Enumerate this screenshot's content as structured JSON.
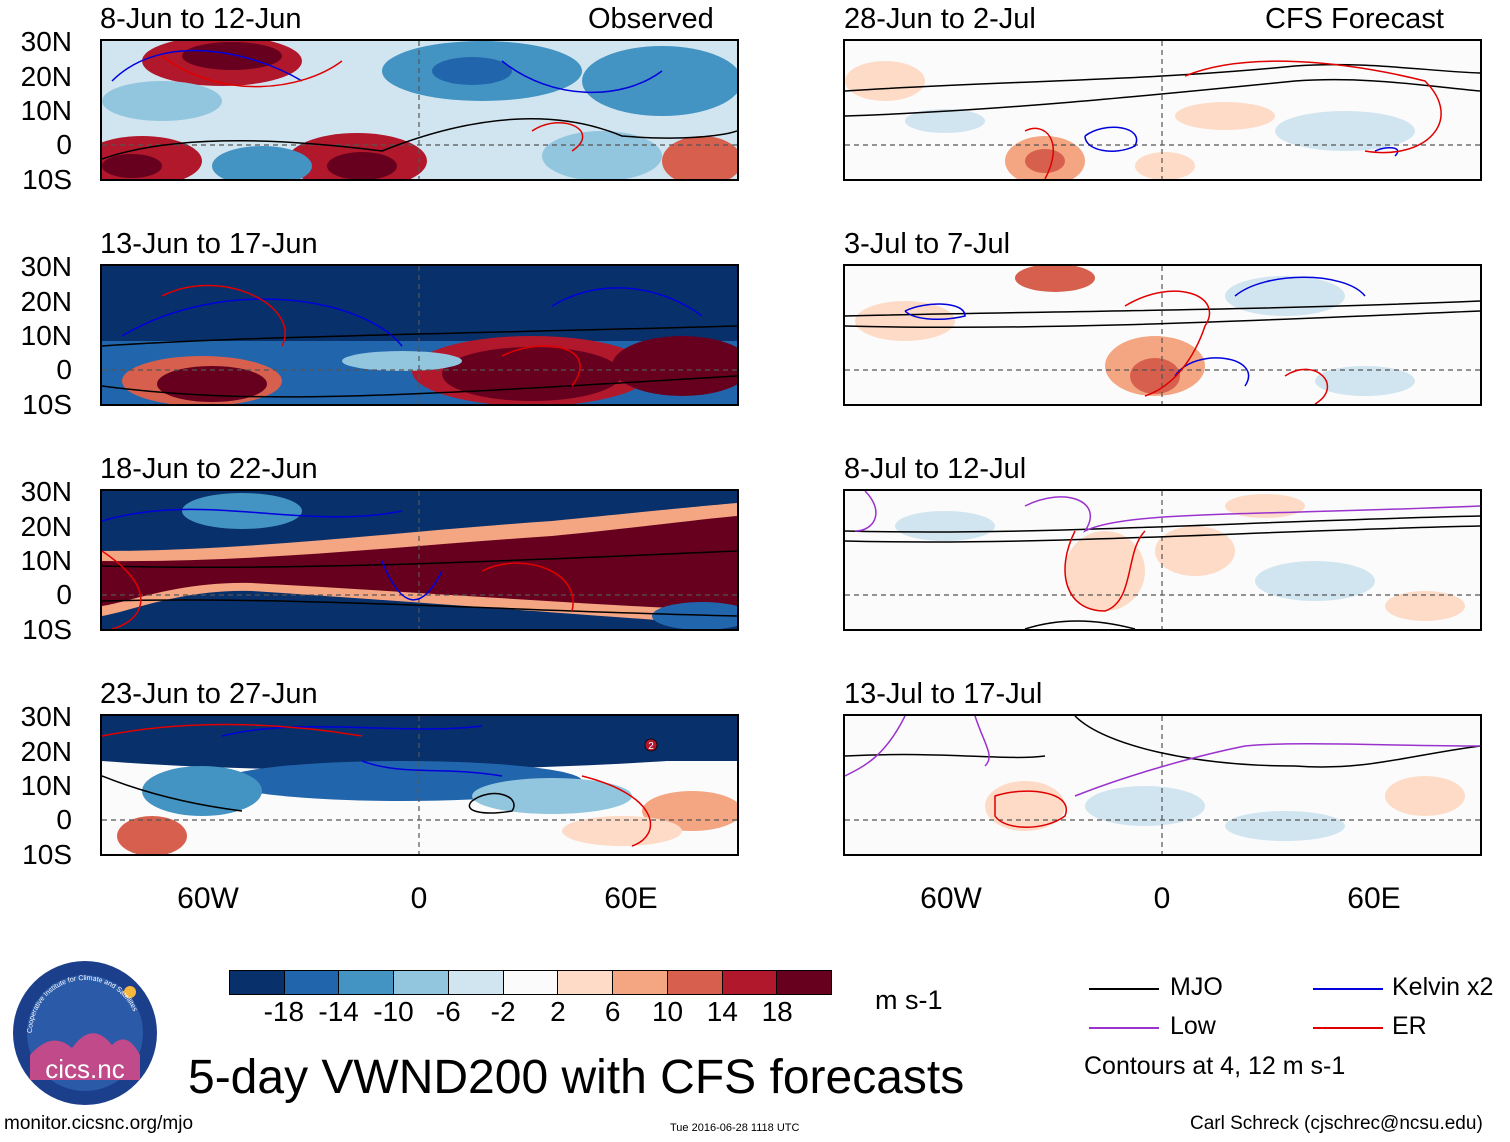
{
  "main_title": "5-day VWND200 with CFS forecasts",
  "labels": {
    "observed": "Observed",
    "forecast": "CFS Forecast",
    "units": "m s-1",
    "contours_note": "Contours at 4, 12 m s-1",
    "url": "monitor.cicsnc.org/mjo",
    "timestamp": "Tue 2016-06-28 1118 UTC",
    "author": "Carl Schreck (cjschrec@ncsu.edu)",
    "logo_text": "cics.nc",
    "logo_ring_text": "Cooperative Institute for Climate and Satellites"
  },
  "panels_left": [
    {
      "title": "8-Jun to 12-Jun"
    },
    {
      "title": "13-Jun to 17-Jun"
    },
    {
      "title": "18-Jun to 22-Jun"
    },
    {
      "title": "23-Jun to 27-Jun"
    }
  ],
  "panels_right": [
    {
      "title": "28-Jun to 2-Jul"
    },
    {
      "title": "3-Jul to 7-Jul"
    },
    {
      "title": "8-Jul to 12-Jul"
    },
    {
      "title": "13-Jul to 17-Jul"
    }
  ],
  "lat_labels": [
    "30N",
    "20N",
    "10N",
    "0",
    "10S"
  ],
  "lon_labels": [
    "60W",
    "0",
    "60E"
  ],
  "colorbar": {
    "colors": [
      "#08306b",
      "#2166ac",
      "#4393c3",
      "#92c5de",
      "#d1e5f0",
      "#fbfbfb",
      "#fddbc7",
      "#f4a582",
      "#d6604d",
      "#b2182b",
      "#67001f"
    ],
    "ticks": [
      "-18",
      "-14",
      "-10",
      "-6",
      "-2",
      "2",
      "6",
      "10",
      "14",
      "18"
    ]
  },
  "legend": [
    {
      "label": "MJO",
      "color": "#000000"
    },
    {
      "label": "Kelvin x2",
      "color": "#0000dd"
    },
    {
      "label": "Low",
      "color": "#9a32cd"
    },
    {
      "label": "ER",
      "color": "#e00000"
    }
  ],
  "storm_marker": "2"
}
